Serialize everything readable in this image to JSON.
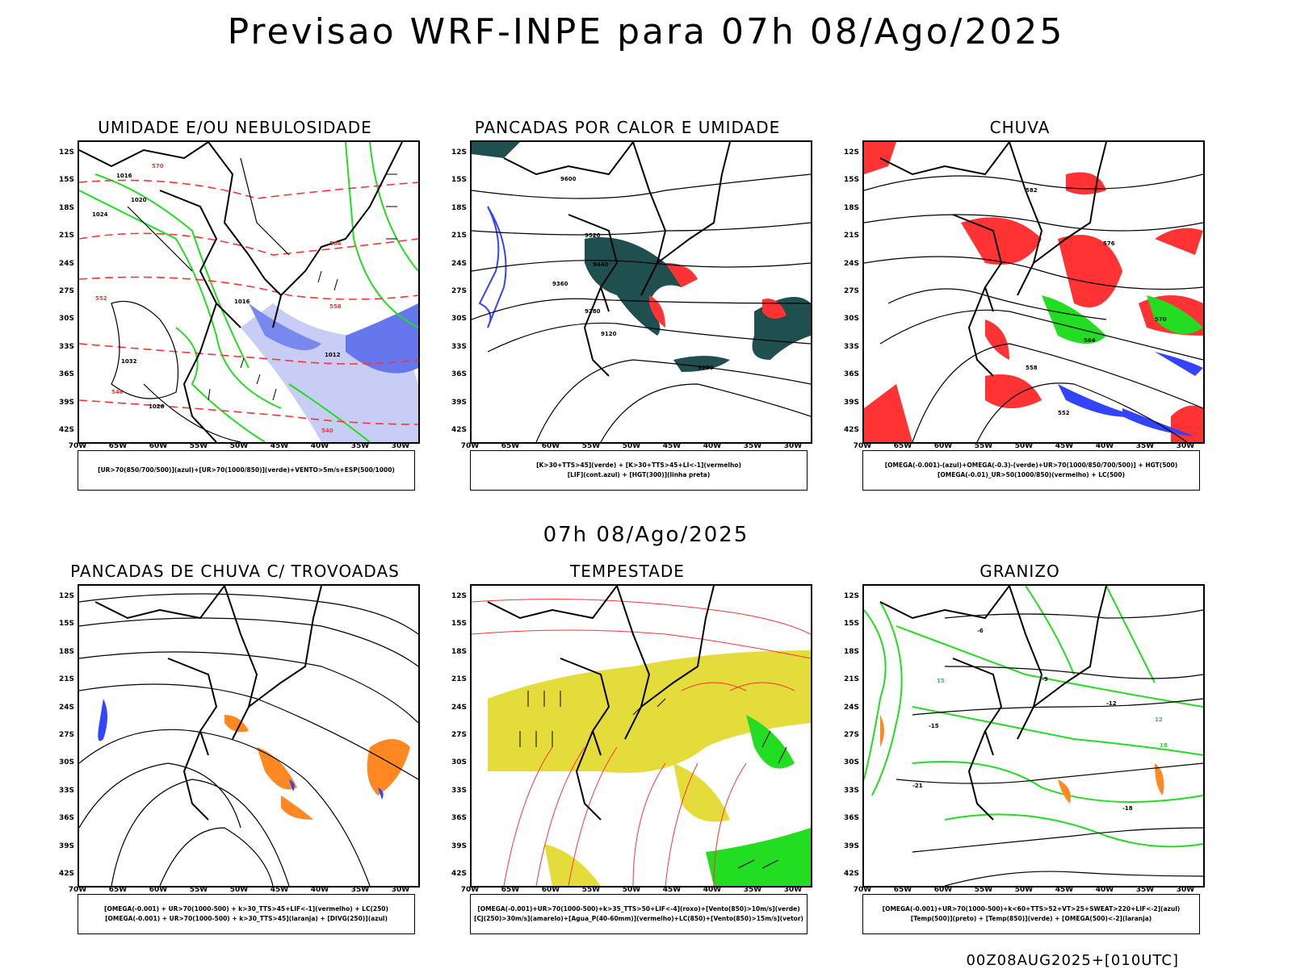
{
  "title": "Previsao WRF-INPE  para 07h 08/Ago/2025",
  "mid_title": "07h 08/Ago/2025",
  "footer": "00Z08AUG2025+[010UTC]",
  "lat_labels": [
    "12S",
    "15S",
    "18S",
    "21S",
    "24S",
    "27S",
    "30S",
    "33S",
    "36S",
    "39S",
    "42S"
  ],
  "lon_labels": [
    "70W",
    "65W",
    "60W",
    "55W",
    "50W",
    "45W",
    "40W",
    "35W",
    "30W"
  ],
  "panels": [
    {
      "title": "UMIDADE E/OU NEBULOSIDADE",
      "legend": [
        "[UR>70(850/700/500)](azul)+[UR>70(1000/850)](verde)+VENTO>5m/s+ESP(500/1000)"
      ],
      "contour_labels": [
        "1016",
        "1020",
        "1024",
        "1028",
        "1032",
        "1016",
        "1012",
        "570",
        "564",
        "558",
        "552",
        "546",
        "540"
      ]
    },
    {
      "title": "PANCADAS POR CALOR E UMIDADE",
      "legend": [
        "[K>30+TTS>45](verde) + [K>30+TTS>45+LI<-1](vermelho)",
        "[LIF](cont.azul) + [HGT(300)](linha preta)"
      ],
      "contour_labels": [
        "9600",
        "9520",
        "9440",
        "9360",
        "9280",
        "9200",
        "9120"
      ]
    },
    {
      "title": "CHUVA",
      "legend": [
        "[OMEGA(-0.001)-(azul)+OMEGA(-0.3)-(verde)+UR>70(1000/850/700/500)] + HGT(500)",
        "[OMEGA(-0.01)_UR>50(1000/850)(vermelho) + LC(500)"
      ],
      "contour_labels": [
        "582",
        "576",
        "570",
        "564",
        "558",
        "552"
      ]
    },
    {
      "title": "PANCADAS DE CHUVA C/ TROVOADAS",
      "legend": [
        "[OMEGA(-0.001) + UR>70(1000-500) + k>30_TTS>45+LIF<-1](vermelho) + LC(250)",
        "[OMEGA(-0.001) + UR>70(1000-500) + k>30_TTS>45](laranja) + [DIVG(250)](azul)"
      ],
      "contour_labels": []
    },
    {
      "title": "TEMPESTADE",
      "legend": [
        "[OMEGA(-0.001)+UR>70(1000-500)+k>35_TTS>50+LIF<-4](roxo)+[Vento(850)>10m/s](verde)",
        "[CJ(250)>30m/s](amarelo)+[Agua_P(40-60mm)](vermelho)+LC(850)+[Vento(850)>15m/s](vetor)"
      ],
      "contour_labels": []
    },
    {
      "title": "GRANIZO",
      "legend": [
        "[OMEGA(-0.001)+UR>70(1000-500)+k<60+TTS>52+VT>25+SWEAT>220+LIF<-2](azul)",
        "[Temp(500)](preto) + [Temp(850)](verde) + [OMEGA(500)<-2](laranja)"
      ],
      "contour_labels": [
        "-6",
        "-9",
        "-12",
        "-15",
        "-18",
        "-21",
        "12",
        "15",
        "18"
      ]
    }
  ],
  "colors": {
    "green": "#22dd22",
    "red": "#ff3333",
    "blue": "#3344ff",
    "dark_teal": "#1f4f4f",
    "yellow": "#e4dc3a",
    "orange": "#ff8822",
    "lightblue": "#9aa8ee"
  }
}
